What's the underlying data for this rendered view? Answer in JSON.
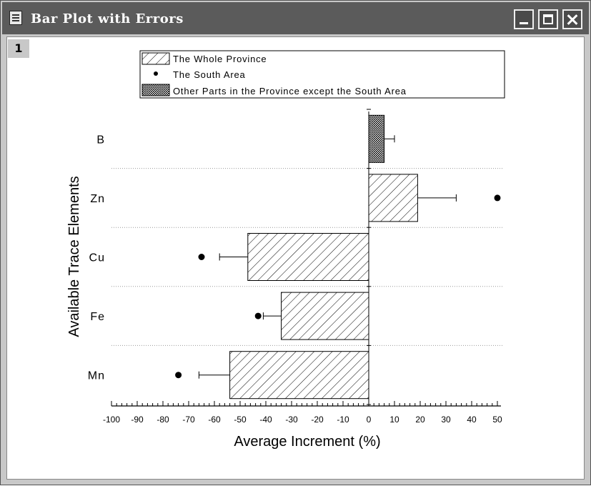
{
  "window": {
    "title": "Bar Plot with Errors",
    "layer_label": "1",
    "titlebar_color": "#5b5b5b"
  },
  "chart_data": {
    "type": "bar",
    "orientation": "horizontal",
    "title": "",
    "xlabel": "Average Increment (%)",
    "ylabel": "Available Trace Elements",
    "xlim": [
      -100,
      50
    ],
    "x_ticks": [
      -100,
      -90,
      -80,
      -70,
      -60,
      -50,
      -40,
      -30,
      -20,
      -10,
      0,
      10,
      20,
      30,
      40,
      50
    ],
    "categories": [
      "B",
      "Zn",
      "Cu",
      "Fe",
      "Mn"
    ],
    "grid": "horizontal dotted lines between categories",
    "legend_position": "top",
    "legend": [
      {
        "label": "The Whole Province",
        "marker": "diagonal-hatch-bar"
      },
      {
        "label": "The South Area",
        "marker": "dot"
      },
      {
        "label": "Other Parts in the Province except the South Area",
        "marker": "crosshatch-bar"
      }
    ],
    "series": [
      {
        "name": "The Whole Province",
        "kind": "bar",
        "values": [
          null,
          19,
          -47,
          -34,
          -54
        ],
        "errors": [
          null,
          15,
          11,
          7,
          12
        ]
      },
      {
        "name": "The South Area",
        "kind": "point",
        "values": [
          null,
          50,
          -65,
          -43,
          -74
        ]
      },
      {
        "name": "Other Parts in the Province except the South Area",
        "kind": "bar",
        "values": [
          6,
          null,
          null,
          null,
          null
        ],
        "errors": [
          4,
          null,
          null,
          null,
          null
        ]
      }
    ]
  }
}
